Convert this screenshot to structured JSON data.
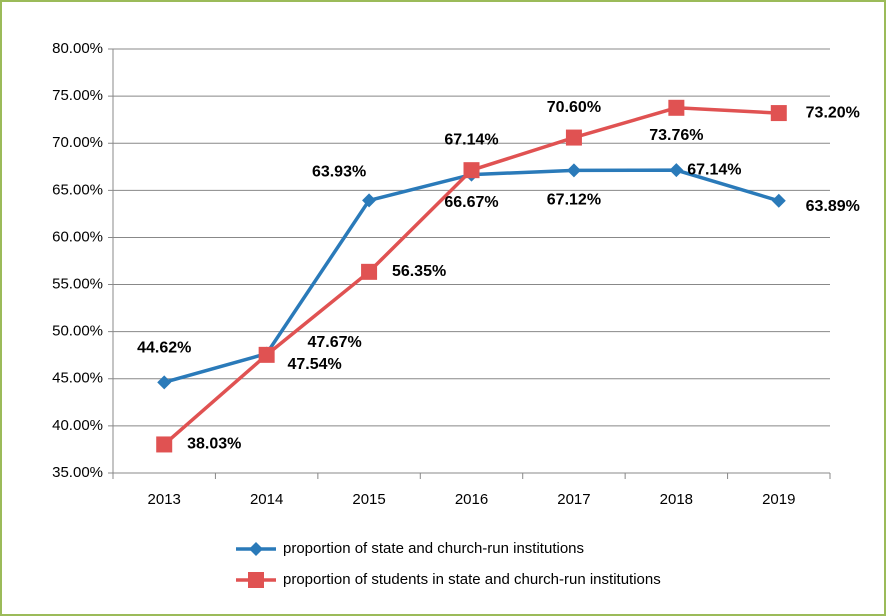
{
  "chart_data": {
    "type": "line",
    "categories": [
      "2013",
      "2014",
      "2015",
      "2016",
      "2017",
      "2018",
      "2019"
    ],
    "series": [
      {
        "name": "proportion of state and church-run institutions",
        "color": "#2a7ab9",
        "values": [
          44.62,
          47.67,
          63.93,
          66.67,
          67.12,
          67.14,
          63.89
        ],
        "value_labels": [
          "44.62%",
          "47.67%",
          "63.93%",
          "66.67%",
          "67.12%",
          "67.14%",
          "63.89%"
        ]
      },
      {
        "name": "proportion of students in state and church-run institutions",
        "color": "#e05252",
        "values": [
          38.03,
          47.54,
          56.35,
          67.14,
          70.6,
          73.76,
          73.2
        ],
        "value_labels": [
          "38.03%",
          "47.54%",
          "56.35%",
          "67.14%",
          "70.60%",
          "73.76%",
          "73.20%"
        ]
      }
    ],
    "ylim": [
      35,
      80
    ],
    "yticks": [
      {
        "value": 35,
        "label": "35.00%"
      },
      {
        "value": 40,
        "label": "40.00%"
      },
      {
        "value": 45,
        "label": "45.00%"
      },
      {
        "value": 50,
        "label": "50.00%"
      },
      {
        "value": 55,
        "label": "55.00%"
      },
      {
        "value": 60,
        "label": "60.00%"
      },
      {
        "value": 65,
        "label": "65.00%"
      },
      {
        "value": 70,
        "label": "70.00%"
      },
      {
        "value": 75,
        "label": "75.00%"
      },
      {
        "value": 80,
        "label": "80.00%"
      }
    ],
    "grid": true,
    "legend": "bottom"
  }
}
